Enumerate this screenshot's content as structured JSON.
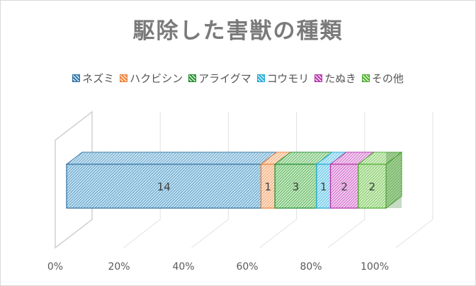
{
  "chart_data": {
    "type": "bar",
    "orientation": "horizontal-stacked-100",
    "title": "駆除した害獣の種類",
    "categories": [
      ""
    ],
    "series": [
      {
        "name": "ネズミ",
        "values": [
          14
        ],
        "color": "#2e6e9e",
        "fill": "#bfe3f5"
      },
      {
        "name": "ハクビシン",
        "values": [
          1
        ],
        "color": "#ee7d31",
        "fill": "#fde3cf"
      },
      {
        "name": "アライグマ",
        "values": [
          3
        ],
        "color": "#1e8a2e",
        "fill": "#c6ecc0"
      },
      {
        "name": "コウモリ",
        "values": [
          1
        ],
        "color": "#1aa8d8",
        "fill": "#c7ecf8"
      },
      {
        "name": "たぬき",
        "values": [
          2
        ],
        "color": "#b02fa7",
        "fill": "#f5cdf2"
      },
      {
        "name": "その他",
        "values": [
          2
        ],
        "color": "#4aaa2e",
        "fill": "#d4f0c4"
      }
    ],
    "xlim": [
      0,
      100
    ],
    "ticks": [
      "0%",
      "20%",
      "40%",
      "60%",
      "80%",
      "100%"
    ],
    "legend_position": "top",
    "grid": true
  }
}
